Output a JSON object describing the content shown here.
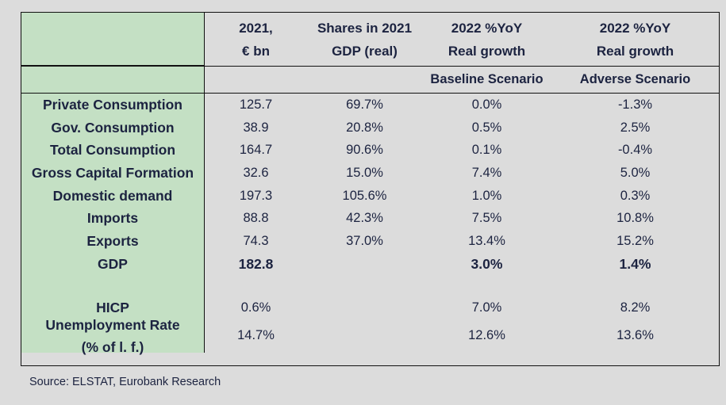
{
  "header": {
    "col1": [
      "2021,",
      "€ bn"
    ],
    "col2": [
      "Shares in 2021",
      "GDP (real)"
    ],
    "col3": [
      "2022 %YoY",
      "Real growth"
    ],
    "col4": [
      "2022 %YoY",
      "Real growth"
    ],
    "sub3": "Baseline Scenario",
    "sub4": "Adverse Scenario"
  },
  "rows": [
    {
      "label": "Private Consumption",
      "v2021": "125.7",
      "share": "69.7%",
      "base": "0.0%",
      "adverse": "-1.3%"
    },
    {
      "label": "Gov.  Consumption",
      "v2021": "38.9",
      "share": "20.8%",
      "base": "0.5%",
      "adverse": "2.5%"
    },
    {
      "label": "Total Consumption",
      "v2021": "164.7",
      "share": "90.6%",
      "base": "0.1%",
      "adverse": "-0.4%"
    },
    {
      "label": "Gross Capital Formation",
      "v2021": "32.6",
      "share": "15.0%",
      "base": "7.4%",
      "adverse": "5.0%"
    },
    {
      "label": "Domestic demand",
      "v2021": "197.3",
      "share": "105.6%",
      "base": "1.0%",
      "adverse": "0.3%"
    },
    {
      "label": "Imports",
      "v2021": "88.8",
      "share": "42.3%",
      "base": "7.5%",
      "adverse": "10.8%"
    },
    {
      "label": "Exports",
      "v2021": "74.3",
      "share": "37.0%",
      "base": "13.4%",
      "adverse": "15.2%"
    },
    {
      "label": "GDP",
      "v2021": "182.8",
      "share": "",
      "base": "3.0%",
      "adverse": "1.4%"
    }
  ],
  "hicp": {
    "label": "HICP",
    "v2021": "0.6%",
    "share": "",
    "base": "7.0%",
    "adverse": "8.2%"
  },
  "unemployment": {
    "label": [
      "Unemployment Rate",
      "(% of l. f.)"
    ],
    "v2021": "14.7%",
    "share": "",
    "base": "12.6%",
    "adverse": "13.6%"
  },
  "source": "Source: ELSTAT, Eurobank Research",
  "colors": {
    "stub_bg": "#c4e0c4",
    "page_bg": "#dcdcdc",
    "text": "#1c2340"
  }
}
